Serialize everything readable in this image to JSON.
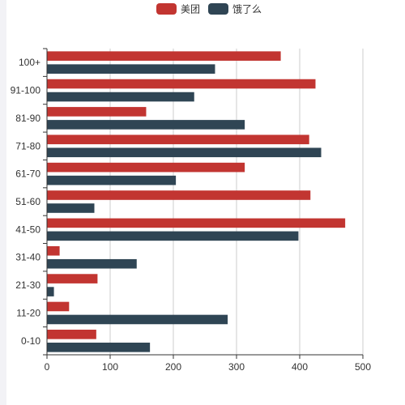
{
  "chart_data": {
    "type": "bar",
    "orientation": "horizontal",
    "categories": [
      "0-10",
      "11-20",
      "21-30",
      "31-40",
      "41-50",
      "51-60",
      "61-70",
      "71-80",
      "81-90",
      "91-100",
      "100+"
    ],
    "series": [
      {
        "name": "美团",
        "color": "#c23531",
        "values": [
          78,
          35,
          80,
          20,
          472,
          417,
          313,
          415,
          157,
          425,
          370
        ]
      },
      {
        "name": "饿了么",
        "color": "#2f4554",
        "values": [
          163,
          286,
          11,
          142,
          398,
          75,
          204,
          434,
          313,
          233,
          266
        ]
      }
    ],
    "xlim": [
      0,
      500
    ],
    "xticks": [
      0,
      100,
      200,
      300,
      400,
      500
    ],
    "grid": true,
    "legend_position": "top-center",
    "title": "",
    "xlabel": "",
    "ylabel": ""
  }
}
